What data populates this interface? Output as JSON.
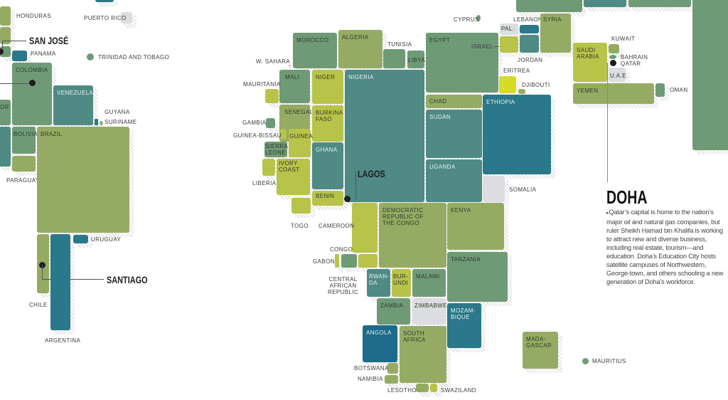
{
  "colors": {
    "olive": "#95ab63",
    "sage": "#6f9a76",
    "teal": "#4f8a85",
    "deep_teal": "#2a7889",
    "lime": "#b8c34a",
    "yellow": "#d6dc26",
    "grey": "#dcdde0",
    "angola_blue": "#1d6a8a"
  },
  "cities": {
    "san_jose": "SAN JOSÉ",
    "santiago": "SANTIAGO",
    "lagos": "LAGOS"
  },
  "callout": {
    "title": "DOHA",
    "bullet": "▸",
    "body": "Qatar’s capital is home to the nation’s major oil and natural gas companies, but ruler Sheikh Hamad bin Khalifa is working to attract new and diverse business, including real estate, tourism—and education. Doha’s Education City hosts satellite campuses of Northwestern, George-town, and others schooling a new generation of Doha’s workforce."
  },
  "countries": {
    "honduras": "HONDURAS",
    "puerto_rico": "PUERTO RICO",
    "panama": "PANAMA",
    "trinidad": "TRINIDAD AND TOBAGO",
    "colombia": "COLOMBIA",
    "venezuela": "VENEZUELA",
    "guyana": "GUYANA",
    "suriname": "SURINAME",
    "ecuador": "OR",
    "bolivia": "BOLIVIA",
    "brazil": "BRAZIL",
    "paraguay": "PARAGUAY",
    "uruguay": "URUGUAY",
    "chile": "CHILE",
    "argentina": "ARGENTINA",
    "morocco": "MOROCCO",
    "algeria": "ALGERIA",
    "tunisia": "TUNISIA",
    "libya": "LIBYA",
    "w_sahara": "W. SAHARA",
    "egypt": "EGYPT",
    "mali": "MALI",
    "niger": "NIGER",
    "nigeria": "NIGERIA",
    "mauritania": "MAURITANIA",
    "senegal": "SENEGAL",
    "burkina_faso": "BURKINA\nFASO",
    "gambia": "GAMBIA",
    "guinea_bissau": "GUINEA-BISSAU",
    "guinea": "GUINEA",
    "sierra_leone": "SIERRA\nLEONE",
    "ghana": "GHANA",
    "liberia": "LIBERIA",
    "ivory_coast": "IVORY\nCOAST",
    "benin": "BENIN",
    "togo": "TOGO",
    "chad": "CHAD",
    "sudan": "SUDAN",
    "uganda": "UGANDA",
    "ethiopia": "ETHIOPIA",
    "somalia": "SOMALIA",
    "eritrea": "ERITREA",
    "djibouti": "DJIBOUTI",
    "cameroon": "CAMEROON",
    "drc": "DEMOCRATIC\nREPUBLIC OF\nTHE CONGO",
    "kenya": "KENYA",
    "tanzania": "TANZANIA",
    "congo": "CONGO",
    "gabon": "GABON",
    "car": "CENTRAL\nAFRICAN\nREPUBLIC",
    "rwanda": "RWAN-\nDA",
    "burundi": "BUR-\nUNDI",
    "malawi": "MALAWI",
    "zambia": "ZAMBIA",
    "zimbabwe": "ZIMBABWE",
    "mozambique": "MOZAM-\nBIQUE",
    "angola": "ANGOLA",
    "south_africa": "SOUTH\nAFRICA",
    "botswana": "BOTSWANA",
    "namibia": "NAMIBIA",
    "lesotho": "LESOTHO",
    "swaziland": "SWAZILAND",
    "madagascar": "MADA-\nGASCAR",
    "mauritius": "MAURITIUS",
    "cyprus": "CYPRUS",
    "lebanon": "LEBANON",
    "syria": "SYRIA",
    "palestine": "PAL.",
    "israel": "ISRAEL",
    "jordan": "JORDAN",
    "saudi_arabia": "SAUDI\nARABIA",
    "kuwait": "KUWAIT",
    "bahrain": "BAHRAIN",
    "qatar": "QATAR",
    "uae": "U.A.E.",
    "yemen": "YEMEN",
    "oman": "OMAN"
  }
}
